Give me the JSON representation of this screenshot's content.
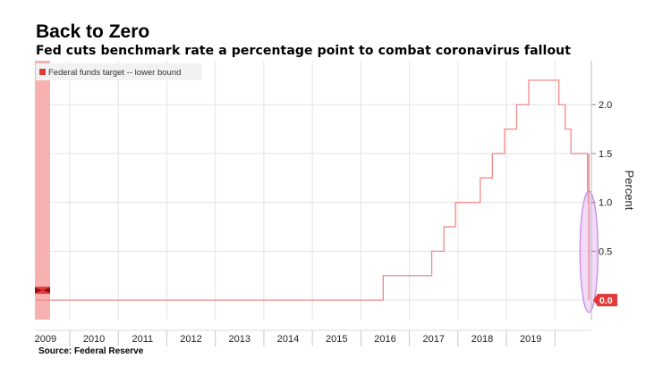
{
  "title": "Back to Zero",
  "subtitle": "Fed cuts benchmark rate a percentage point to combat coronavirus fallout",
  "source": "Source: Federal Reserve",
  "colors": {
    "line": "#f08a8a",
    "band": "#f7a3a3",
    "marker": "#e03a3a",
    "highlight_fill": "#eecbf5",
    "highlight_stroke": "#c58ae0",
    "grid": "#e3e3e3"
  },
  "chart_data": {
    "type": "line",
    "step": true,
    "title": "Back to Zero",
    "subtitle": "Fed cuts benchmark rate a percentage point to combat coronavirus fallout",
    "xlabel": "",
    "ylabel": "Percent",
    "yaxis_side": "right",
    "grid": true,
    "legend_position": "top-left",
    "xlim": [
      2008.8,
      2020.25
    ],
    "ylim": [
      -0.2,
      2.45
    ],
    "x_tick_labels": [
      "2009",
      "2010",
      "2011",
      "2012",
      "2013",
      "2014",
      "2015",
      "2016",
      "2017",
      "2018",
      "2019"
    ],
    "x_tick_positions": [
      2009,
      2010,
      2011,
      2012,
      2013,
      2014,
      2015,
      2016,
      2017,
      2018,
      2019
    ],
    "y_tick_labels": [
      "0.5",
      "1.0",
      "1.5",
      "2.0"
    ],
    "y_tick_values": [
      0.5,
      1.0,
      1.5,
      2.0
    ],
    "last_value_label": "0.0",
    "last_value": 0.0,
    "series": [
      {
        "name": "Federal funds target -- lower bound",
        "x": [
          2008.96,
          2015.96,
          2016.96,
          2017.21,
          2017.45,
          2017.96,
          2018.21,
          2018.46,
          2018.71,
          2018.96,
          2019.58,
          2019.71,
          2019.83,
          2020.17,
          2020.2
        ],
        "y": [
          0.0,
          0.25,
          0.5,
          0.75,
          1.0,
          1.25,
          1.5,
          1.75,
          2.0,
          2.25,
          2.0,
          1.75,
          1.5,
          1.0,
          0.0
        ]
      }
    ]
  }
}
